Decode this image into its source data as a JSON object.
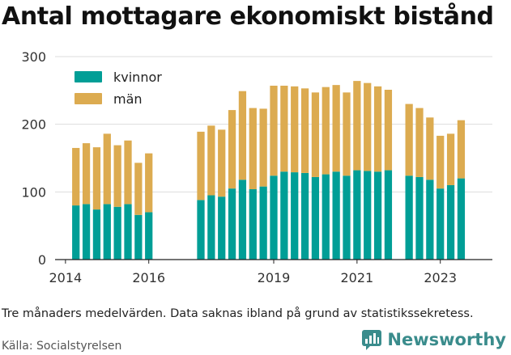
{
  "header": {
    "title": "Antal mottagare ekonomiskt bistånd"
  },
  "footer": {
    "note": "Tre månaders medelvärden. Data saknas ibland på grund av statistikssekretess.",
    "source": "Källa: Socialstyrelsen",
    "brand": "Newsworthy"
  },
  "colors": {
    "kvinnor": "#009e96",
    "man": "#dcab50",
    "grid": "#dddddd",
    "brand": "#3a8c8c"
  },
  "chart_data": {
    "type": "bar",
    "stacked": true,
    "title": "Antal mottagare ekonomiskt bistånd",
    "x_axis_ticks": [
      2014,
      2016,
      2019,
      2021,
      2023
    ],
    "y_axis_ticks": [
      0,
      100,
      200,
      300
    ],
    "ylim": [
      0,
      300
    ],
    "xlim": [
      2013.75,
      2024.25
    ],
    "grid": true,
    "legend_position": "top-left",
    "x": [
      2014.25,
      2014.5,
      2014.75,
      2015.0,
      2015.25,
      2015.5,
      2015.75,
      2016.0,
      2017.25,
      2017.5,
      2017.75,
      2018.0,
      2018.25,
      2018.5,
      2018.75,
      2019.0,
      2019.25,
      2019.5,
      2019.75,
      2020.0,
      2020.25,
      2020.5,
      2020.75,
      2021.0,
      2021.25,
      2021.5,
      2021.75,
      2022.25,
      2022.5,
      2022.75,
      2023.0,
      2023.25,
      2023.5
    ],
    "series": [
      {
        "name": "kvinnor",
        "values": [
          80,
          82,
          74,
          82,
          78,
          82,
          66,
          70,
          88,
          95,
          93,
          105,
          118,
          104,
          108,
          124,
          130,
          129,
          128,
          122,
          126,
          130,
          124,
          132,
          131,
          130,
          132,
          124,
          122,
          118,
          105,
          110,
          120
        ]
      },
      {
        "name": "män",
        "values": [
          85,
          90,
          92,
          104,
          91,
          94,
          77,
          87,
          101,
          103,
          99,
          116,
          131,
          120,
          115,
          133,
          127,
          127,
          125,
          125,
          129,
          128,
          123,
          132,
          130,
          126,
          119,
          106,
          102,
          92,
          78,
          76,
          86
        ]
      }
    ]
  }
}
